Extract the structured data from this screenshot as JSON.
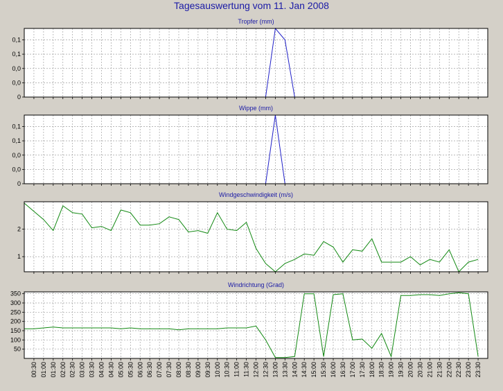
{
  "page_title": "Tagesauswertung vom 11. Jan 2008",
  "colors": {
    "background": "#d4d0c8",
    "plot_background": "#ffffff",
    "grid": "#a0a0a0",
    "title_blue": "#1a1aa6",
    "series_blue": "#2020c8",
    "series_green": "#118811"
  },
  "time_labels": [
    "00:30",
    "01:00",
    "01:30",
    "02:00",
    "02:30",
    "03:00",
    "03:30",
    "04:00",
    "04:30",
    "05:00",
    "05:30",
    "06:00",
    "06:30",
    "07:00",
    "07:30",
    "08:00",
    "08:30",
    "09:00",
    "09:30",
    "10:00",
    "10:30",
    "11:00",
    "11:30",
    "12:00",
    "12:30",
    "13:00",
    "13:30",
    "14:00",
    "14:30",
    "15:00",
    "15:30",
    "16:00",
    "16:30",
    "17:00",
    "17:30",
    "18:00",
    "18:30",
    "19:00",
    "19:30",
    "20:00",
    "20:30",
    "21:00",
    "21:30",
    "22:00",
    "22:30",
    "23:00",
    "23:30"
  ],
  "chart_data": [
    {
      "type": "line",
      "title": "Tropfer (mm)",
      "x": [
        "12:30",
        "13:00",
        "13:30",
        "14:00"
      ],
      "series": [
        {
          "values": [
            0,
            0.24,
            0.2,
            0
          ]
        }
      ],
      "y_tick_labels": [
        "0",
        "0,0",
        "0,0",
        "0,1",
        "0,1"
      ],
      "y_tick_values": [
        0,
        0.05,
        0.1,
        0.15,
        0.2
      ],
      "ylim": [
        0,
        0.24
      ],
      "grid": true,
      "color": "series_blue"
    },
    {
      "type": "line",
      "title": "Wippe (mm)",
      "x": [
        "12:30",
        "13:00",
        "13:30"
      ],
      "series": [
        {
          "values": [
            0,
            0.24,
            0
          ]
        }
      ],
      "y_tick_labels": [
        "0",
        "0,0",
        "0,0",
        "0,1",
        "0,1"
      ],
      "y_tick_values": [
        0,
        0.05,
        0.1,
        0.15,
        0.2
      ],
      "ylim": [
        0,
        0.24
      ],
      "grid": true,
      "color": "series_blue"
    },
    {
      "type": "line",
      "title": "Windgeschwindigkeit (m/s)",
      "x": [
        "00:00",
        "00:30",
        "01:00",
        "01:30",
        "02:00",
        "02:30",
        "03:00",
        "03:30",
        "04:00",
        "04:30",
        "05:00",
        "05:30",
        "06:00",
        "06:30",
        "07:00",
        "07:30",
        "08:00",
        "08:30",
        "09:00",
        "09:30",
        "10:00",
        "10:30",
        "11:00",
        "11:30",
        "12:00",
        "12:30",
        "13:00",
        "13:30",
        "14:00",
        "14:30",
        "15:00",
        "15:30",
        "16:00",
        "16:30",
        "17:00",
        "17:30",
        "18:00",
        "18:30",
        "19:00",
        "19:30",
        "20:00",
        "20:30",
        "21:00",
        "21:30",
        "22:00",
        "22:30",
        "23:00",
        "23:30"
      ],
      "series": [
        {
          "values": [
            2.95,
            2.65,
            2.35,
            1.95,
            2.85,
            2.6,
            2.55,
            2.05,
            2.1,
            1.95,
            2.7,
            2.6,
            2.15,
            2.15,
            2.2,
            2.45,
            2.35,
            1.9,
            1.95,
            1.85,
            2.6,
            2.0,
            1.95,
            2.25,
            1.3,
            0.75,
            0.45,
            0.75,
            0.9,
            1.1,
            1.05,
            1.55,
            1.35,
            0.8,
            1.25,
            1.2,
            1.65,
            0.8,
            0.8,
            0.8,
            1.0,
            0.7,
            0.9,
            0.8,
            1.25,
            0.45,
            0.8,
            0.9
          ]
        }
      ],
      "y_tick_labels": [
        "1",
        "2"
      ],
      "y_tick_values": [
        1,
        2
      ],
      "ylim": [
        0.45,
        3.0
      ],
      "grid": true,
      "color": "series_green"
    },
    {
      "type": "line",
      "title": "Windrichtung (Grad)",
      "x": [
        "00:00",
        "00:30",
        "01:00",
        "01:30",
        "02:00",
        "02:30",
        "03:00",
        "03:30",
        "04:00",
        "04:30",
        "05:00",
        "05:30",
        "06:00",
        "06:30",
        "07:00",
        "07:30",
        "08:00",
        "08:30",
        "09:00",
        "09:30",
        "10:00",
        "10:30",
        "11:00",
        "11:30",
        "12:00",
        "12:30",
        "13:00",
        "13:30",
        "14:00",
        "14:30",
        "15:00",
        "15:30",
        "16:00",
        "16:30",
        "17:00",
        "17:30",
        "18:00",
        "18:30",
        "19:00",
        "19:30",
        "20:00",
        "20:30",
        "21:00",
        "21:30",
        "22:00",
        "22:30",
        "23:00",
        "23:30"
      ],
      "series": [
        {
          "values": [
            160,
            160,
            165,
            170,
            165,
            165,
            165,
            165,
            165,
            165,
            160,
            165,
            160,
            160,
            160,
            160,
            155,
            160,
            160,
            160,
            160,
            165,
            165,
            165,
            175,
            100,
            5,
            5,
            10,
            350,
            350,
            10,
            345,
            350,
            100,
            105,
            55,
            135,
            10,
            340,
            340,
            345,
            345,
            340,
            350,
            355,
            350,
            10
          ]
        }
      ],
      "y_tick_labels": [
        "50",
        "100",
        "150",
        "200",
        "250",
        "300",
        "350"
      ],
      "y_tick_values": [
        50,
        100,
        150,
        200,
        250,
        300,
        350
      ],
      "ylim": [
        0,
        360
      ],
      "grid": true,
      "color": "series_green"
    }
  ]
}
